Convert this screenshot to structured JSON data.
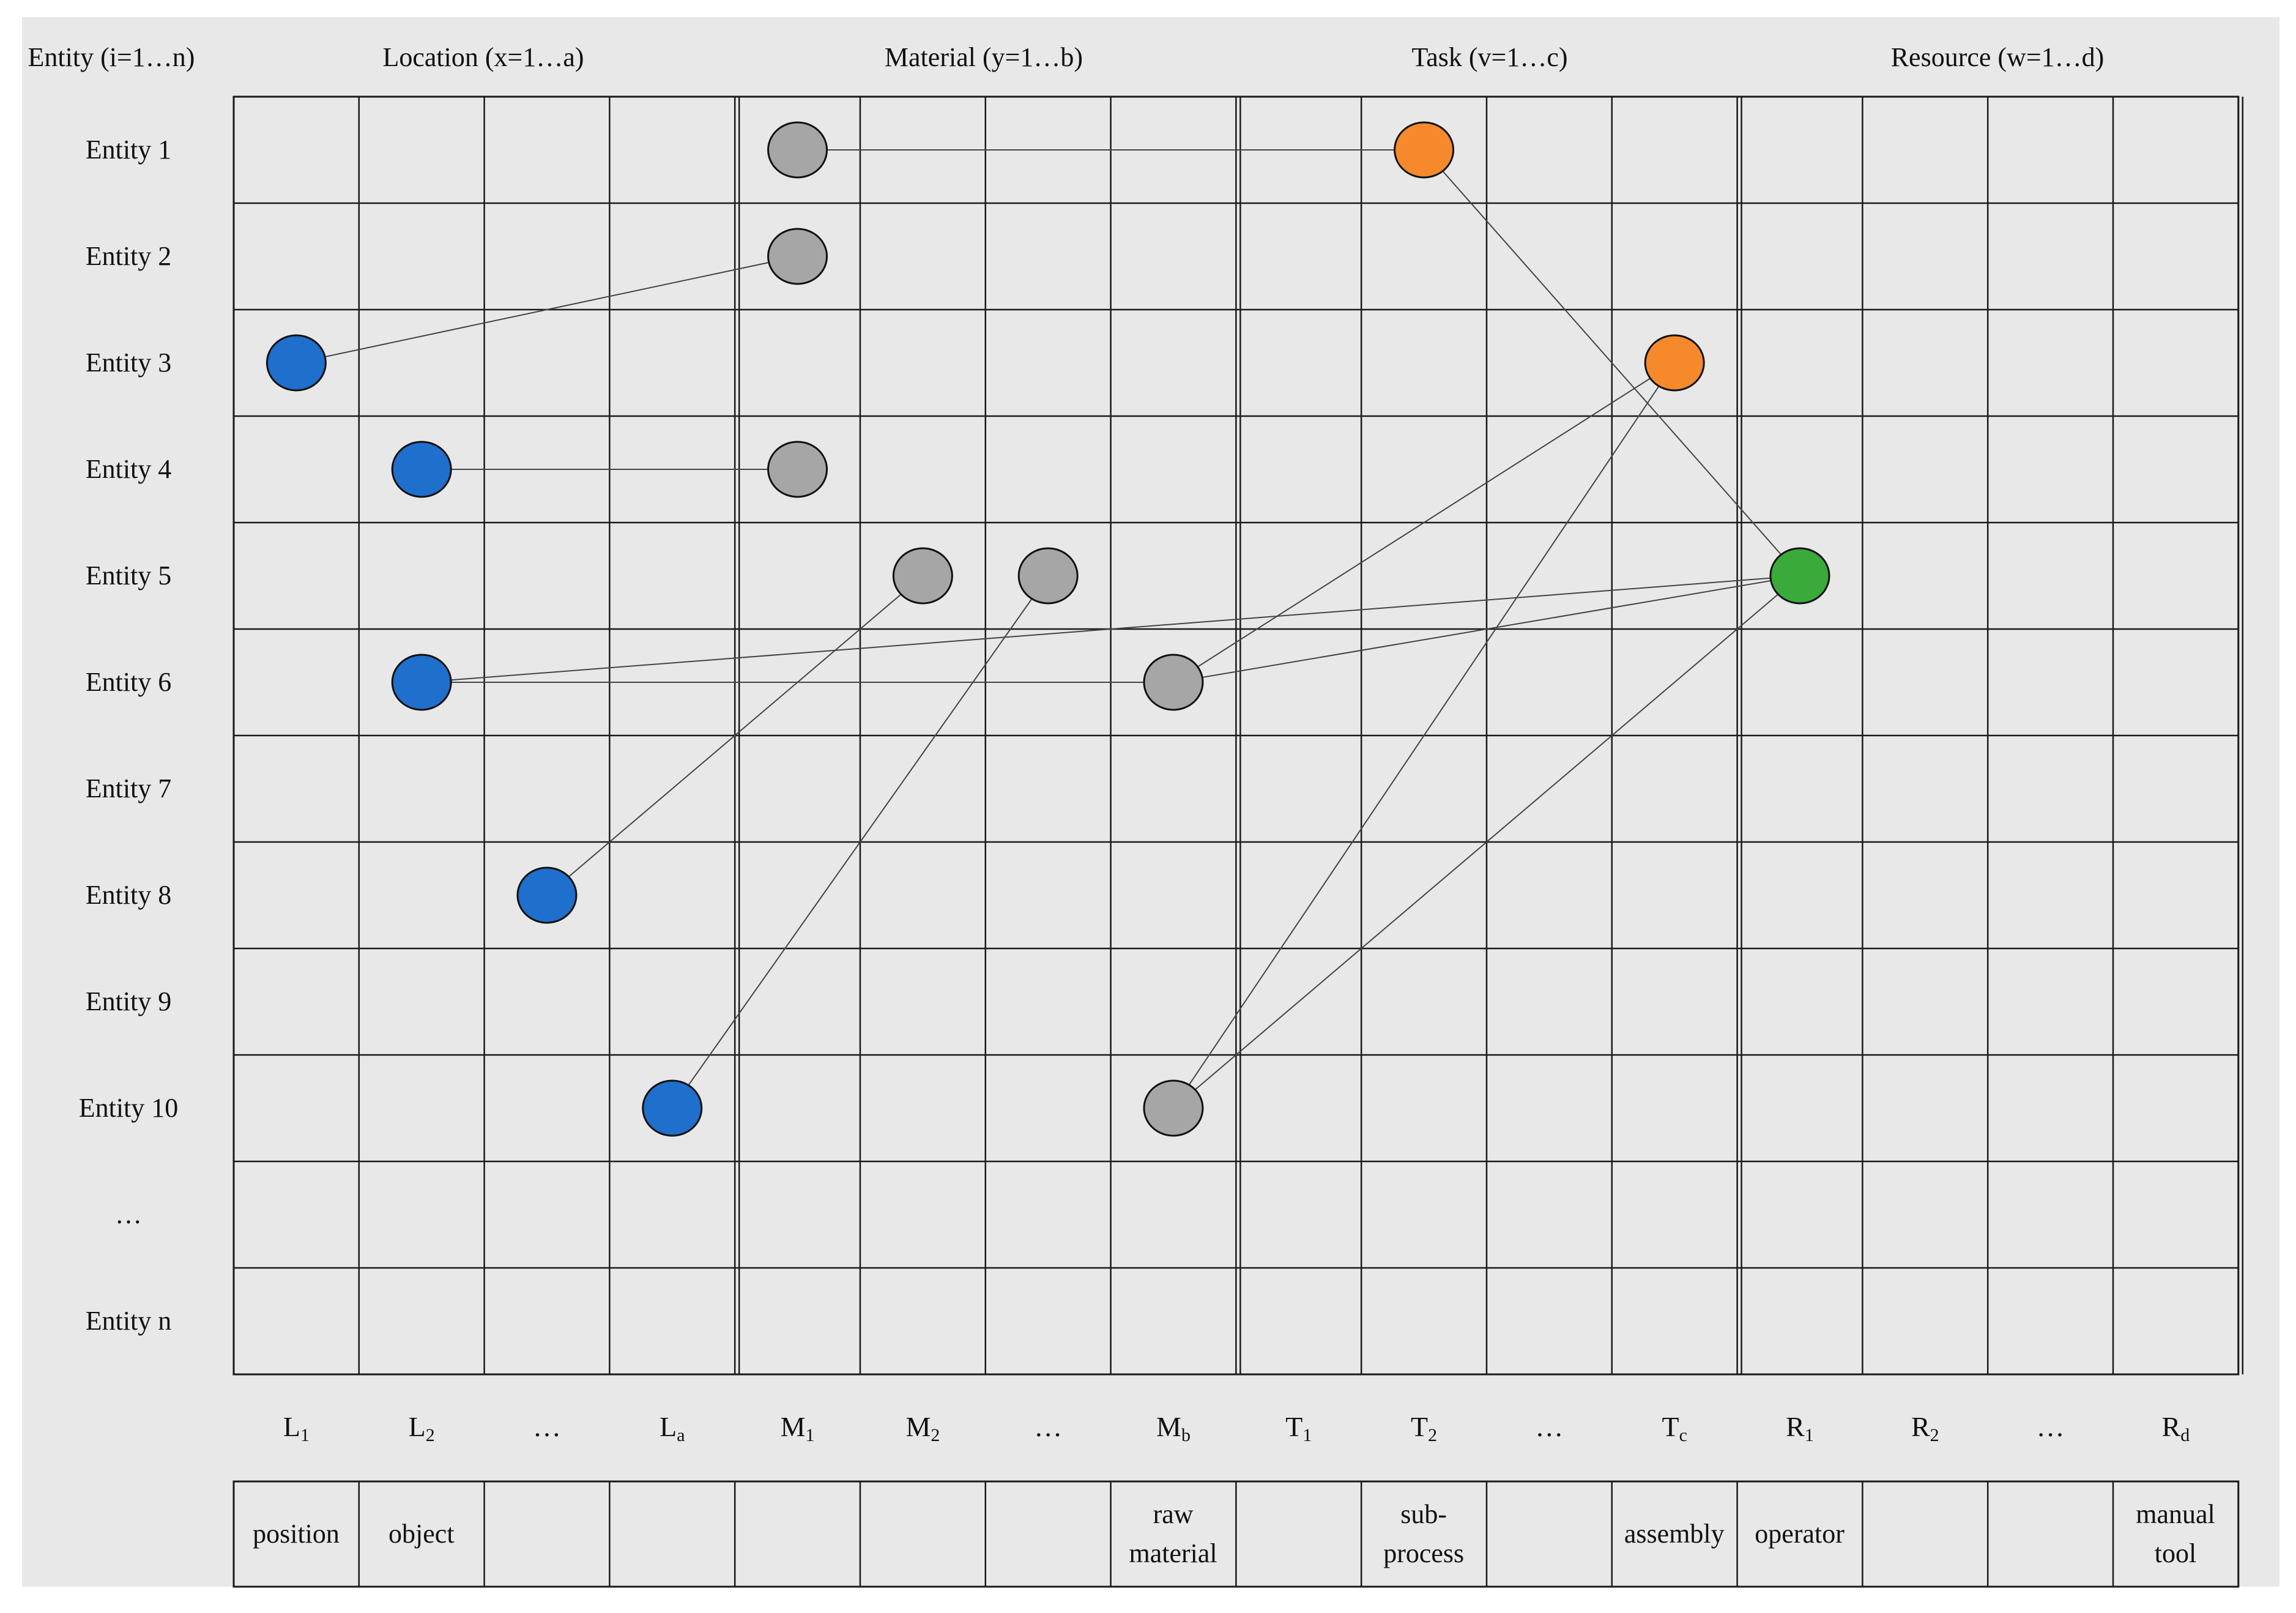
{
  "headers": {
    "entity": "Entity (i=1…n)",
    "location": "Location (x=1…a)",
    "material": "Material (y=1…b)",
    "task": "Task (v=1…c)",
    "resource": "Resource (w=1…d)"
  },
  "rows": [
    "Entity 1",
    "Entity 2",
    "Entity 3",
    "Entity 4",
    "Entity 5",
    "Entity 6",
    "Entity 7",
    "Entity 8",
    "Entity 9",
    "Entity 10",
    "…",
    "Entity n"
  ],
  "column_codes": [
    {
      "base": "L",
      "sub": "1"
    },
    {
      "base": "L",
      "sub": "2"
    },
    {
      "base": "…",
      "sub": ""
    },
    {
      "base": "L",
      "sub": "a"
    },
    {
      "base": "M",
      "sub": "1"
    },
    {
      "base": "M",
      "sub": "2"
    },
    {
      "base": "…",
      "sub": ""
    },
    {
      "base": "M",
      "sub": "b"
    },
    {
      "base": "T",
      "sub": "1"
    },
    {
      "base": "T",
      "sub": "2"
    },
    {
      "base": "…",
      "sub": ""
    },
    {
      "base": "T",
      "sub": "c"
    },
    {
      "base": "R",
      "sub": "1"
    },
    {
      "base": "R",
      "sub": "2"
    },
    {
      "base": "…",
      "sub": ""
    },
    {
      "base": "R",
      "sub": "d"
    }
  ],
  "column_types": [
    "position",
    "object",
    "",
    "",
    "",
    "",
    "",
    "raw material",
    "",
    "sub-process",
    "",
    "assembly",
    "operator",
    "",
    "",
    "manual tool"
  ],
  "colors": {
    "location": "#1f6fcc",
    "material": "#a6a6a6",
    "task": "#f5892b",
    "resource": "#3aaa3a",
    "grid": "#1a1a1a",
    "link": "#444444",
    "panel": "#e8e8e8"
  },
  "nodes": [
    {
      "id": "m1-e1",
      "group": "material",
      "row": 1,
      "col": 5
    },
    {
      "id": "t2-e1",
      "group": "task",
      "row": 1,
      "col": 10
    },
    {
      "id": "m1-e2",
      "group": "material",
      "row": 2,
      "col": 5
    },
    {
      "id": "l1-e3",
      "group": "location",
      "row": 3,
      "col": 1
    },
    {
      "id": "tc-e3",
      "group": "task",
      "row": 3,
      "col": 12
    },
    {
      "id": "l2-e4",
      "group": "location",
      "row": 4,
      "col": 2
    },
    {
      "id": "m1-e4",
      "group": "material",
      "row": 4,
      "col": 5
    },
    {
      "id": "m2-e5",
      "group": "material",
      "row": 5,
      "col": 6
    },
    {
      "id": "mdots-e5",
      "group": "material",
      "row": 5,
      "col": 7
    },
    {
      "id": "r1-e5",
      "group": "resource",
      "row": 5,
      "col": 13
    },
    {
      "id": "l2-e6",
      "group": "location",
      "row": 6,
      "col": 2
    },
    {
      "id": "mb-e6",
      "group": "material",
      "row": 6,
      "col": 8
    },
    {
      "id": "ldots-e8",
      "group": "location",
      "row": 8,
      "col": 3
    },
    {
      "id": "la-e10",
      "group": "location",
      "row": 10,
      "col": 4
    },
    {
      "id": "mb-e10",
      "group": "material",
      "row": 10,
      "col": 8
    }
  ],
  "links": [
    [
      "m1-e1",
      "t2-e1"
    ],
    [
      "t2-e1",
      "r1-e5"
    ],
    [
      "l1-e3",
      "m1-e2"
    ],
    [
      "l2-e4",
      "m1-e4"
    ],
    [
      "l2-e6",
      "mb-e6"
    ],
    [
      "l2-e6",
      "r1-e5"
    ],
    [
      "mb-e6",
      "r1-e5"
    ],
    [
      "mb-e6",
      "tc-e3"
    ],
    [
      "ldots-e8",
      "m2-e5"
    ],
    [
      "la-e10",
      "mdots-e5"
    ],
    [
      "mb-e10",
      "tc-e3"
    ],
    [
      "mb-e10",
      "r1-e5"
    ]
  ]
}
